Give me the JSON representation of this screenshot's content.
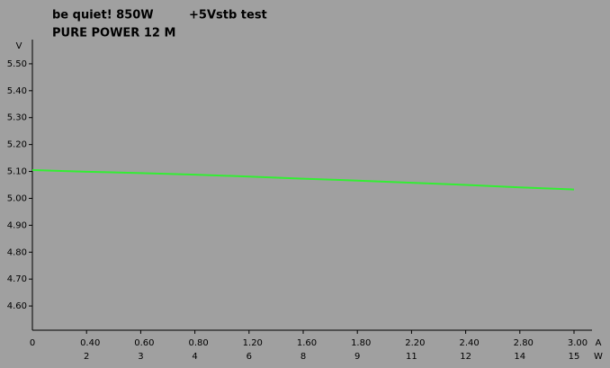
{
  "chart_data": {
    "type": "line",
    "title": "be quiet! 850W",
    "subtitle": "+5Vstb test",
    "model": "PURE POWER 12 M",
    "ylabel": "V",
    "xlabel": "A",
    "x2label": "W",
    "x": [
      0,
      0.3,
      0.6,
      0.9,
      1.2,
      1.5,
      1.8,
      2.1,
      2.4,
      2.7,
      3.0
    ],
    "series": [
      {
        "color": "#33ee33",
        "values": [
          5.105,
          5.099,
          5.094,
          5.088,
          5.081,
          5.073,
          5.066,
          5.058,
          5.05,
          5.041,
          5.033
        ]
      }
    ],
    "xlim": [
      0,
      3.0
    ],
    "xtick_first": "0",
    "xtick_labels": [
      "0.40",
      "0.60",
      "0.80",
      "1.20",
      "1.60",
      "1.80",
      "2.20",
      "2.40",
      "2.80",
      "3.00"
    ],
    "x2tick_labels": [
      "2",
      "3",
      "4",
      "6",
      "8",
      "9",
      "11",
      "12",
      "14",
      "15"
    ],
    "ylim": [
      4.5,
      5.6
    ],
    "yticks": [
      {
        "value": 4.6,
        "label": "4.60"
      },
      {
        "value": 4.7,
        "label": "4.70"
      },
      {
        "value": 4.8,
        "label": "4.80"
      },
      {
        "value": 4.9,
        "label": "4.90"
      },
      {
        "value": 5.0,
        "label": "5.00"
      },
      {
        "value": 5.1,
        "label": "5.10"
      },
      {
        "value": 5.2,
        "label": "5.20"
      },
      {
        "value": 5.3,
        "label": "5.30"
      },
      {
        "value": 5.4,
        "label": "5.40"
      },
      {
        "value": 5.5,
        "label": "5.50"
      }
    ]
  }
}
